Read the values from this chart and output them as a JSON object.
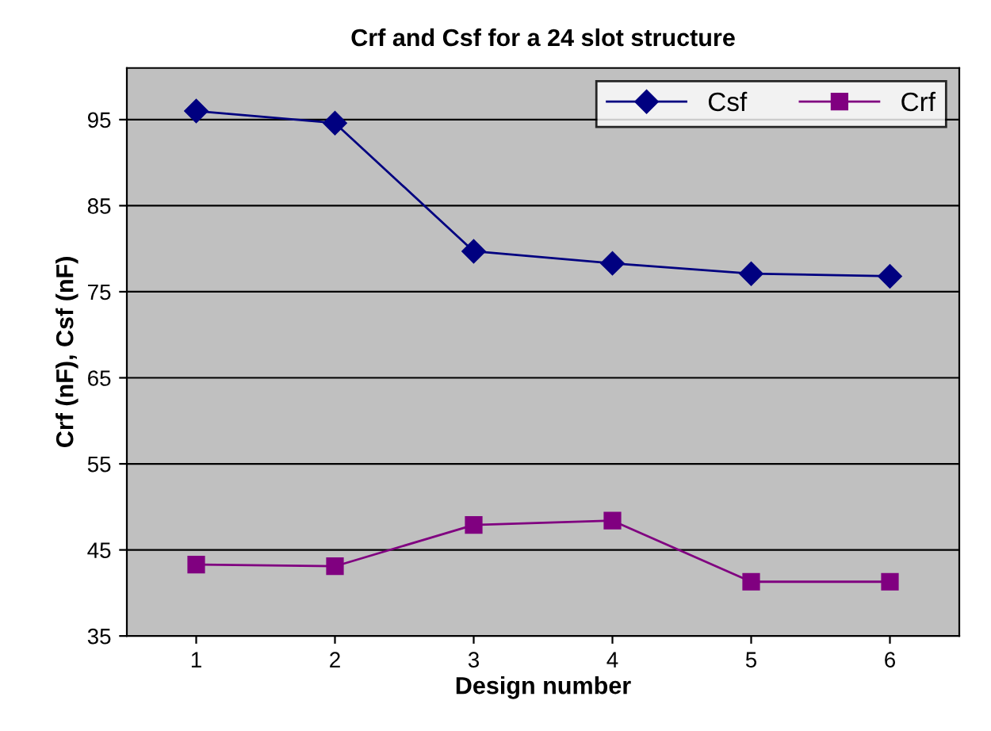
{
  "chart_data": {
    "type": "line",
    "title": "Crf and Csf for a 24 slot structure",
    "xlabel": "Design number",
    "ylabel": "Crf (nF), Csf (nF)",
    "categories": [
      "1",
      "2",
      "3",
      "4",
      "5",
      "6"
    ],
    "series": [
      {
        "name": "Csf",
        "color": "#000080",
        "marker": "diamond",
        "values": [
          96.0,
          94.6,
          79.7,
          78.3,
          77.1,
          76.8
        ]
      },
      {
        "name": "Crf",
        "color": "#800080",
        "marker": "square",
        "values": [
          43.3,
          43.1,
          47.9,
          48.4,
          41.3,
          41.3
        ]
      }
    ],
    "ylim": [
      35,
      101
    ],
    "yticks": [
      35,
      45,
      55,
      65,
      75,
      85,
      95
    ],
    "grid": "y",
    "legend": "top right",
    "line_style": "solid"
  }
}
